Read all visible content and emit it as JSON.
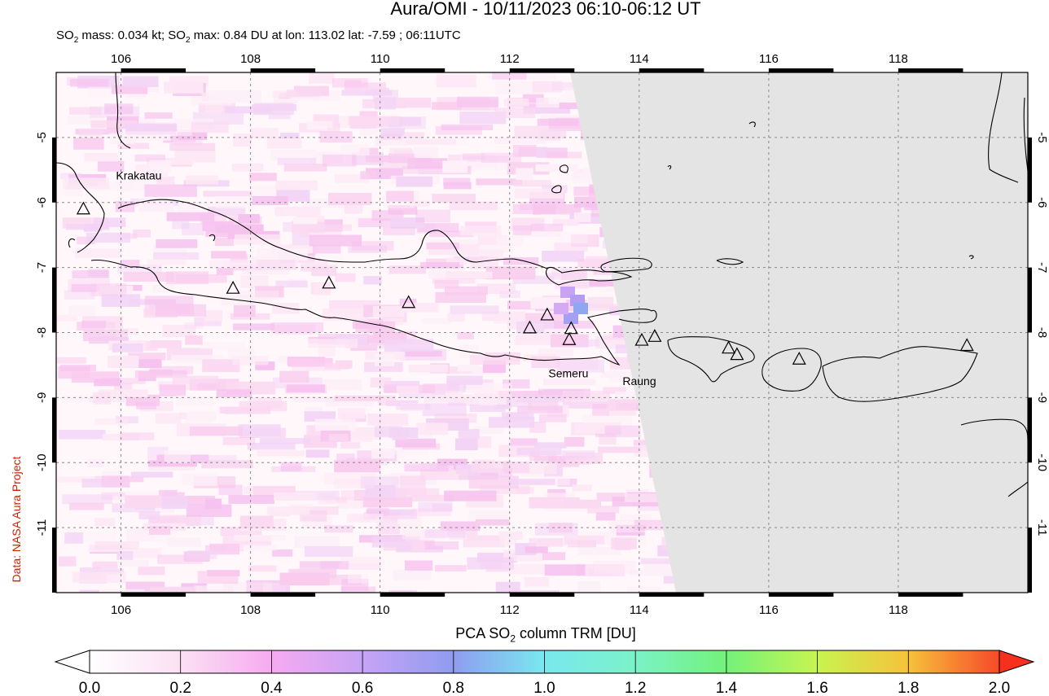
{
  "title": "Aura/OMI - 10/11/2023 06:10-06:12 UT",
  "subtitle": {
    "prefix": "SO",
    "sub": "2",
    "mass_text": " mass: 0.034 kt; SO",
    "sub2": "2",
    "max_text": " max: 0.84 DU at lon: 113.02 lat: -7.59 ; 06:11UTC"
  },
  "credit": "Data: NASA Aura Project",
  "map": {
    "lon_range": [
      105,
      120
    ],
    "lat_range": [
      -12,
      -4
    ],
    "lon_ticks": [
      "106",
      "108",
      "110",
      "112",
      "114",
      "116",
      "118"
    ],
    "lat_ticks": [
      "-5",
      "-6",
      "-7",
      "-8",
      "-9",
      "-10",
      "-11"
    ],
    "no_data_color": "#e4e4e4",
    "volcano_labels": [
      {
        "name": "Krakatau",
        "lon": 105.42,
        "lat": -6.1
      },
      {
        "name": "Semeru",
        "lon": 112.92,
        "lat": -8.11
      },
      {
        "name": "Raung",
        "lon": 114.04,
        "lat": -8.12
      }
    ],
    "volcanoes": [
      {
        "lon": 105.42,
        "lat": -6.1
      },
      {
        "lon": 107.73,
        "lat": -7.32
      },
      {
        "lon": 109.21,
        "lat": -7.24
      },
      {
        "lon": 110.44,
        "lat": -7.54
      },
      {
        "lon": 112.31,
        "lat": -7.93
      },
      {
        "lon": 112.58,
        "lat": -7.73
      },
      {
        "lon": 112.95,
        "lat": -7.94
      },
      {
        "lon": 112.92,
        "lat": -8.11
      },
      {
        "lon": 114.04,
        "lat": -8.12
      },
      {
        "lon": 114.24,
        "lat": -8.06
      },
      {
        "lon": 115.38,
        "lat": -8.24
      },
      {
        "lon": 115.51,
        "lat": -8.34
      },
      {
        "lon": 116.47,
        "lat": -8.41
      },
      {
        "lon": 119.06,
        "lat": -8.2
      }
    ]
  },
  "colorbar": {
    "label_prefix": "PCA SO",
    "label_sub": "2",
    "label_suffix": " column TRM [DU]",
    "ticks": [
      "0.0",
      "0.2",
      "0.4",
      "0.6",
      "0.8",
      "1.0",
      "1.2",
      "1.4",
      "1.6",
      "1.8",
      "2.0"
    ],
    "colors": [
      "#ffffff",
      "#fbe0f4",
      "#f6aaf0",
      "#c7a3f5",
      "#8f9cf0",
      "#79e8ef",
      "#7bf2c8",
      "#72f27a",
      "#c8f450",
      "#f6c23a",
      "#f6492a"
    ]
  }
}
